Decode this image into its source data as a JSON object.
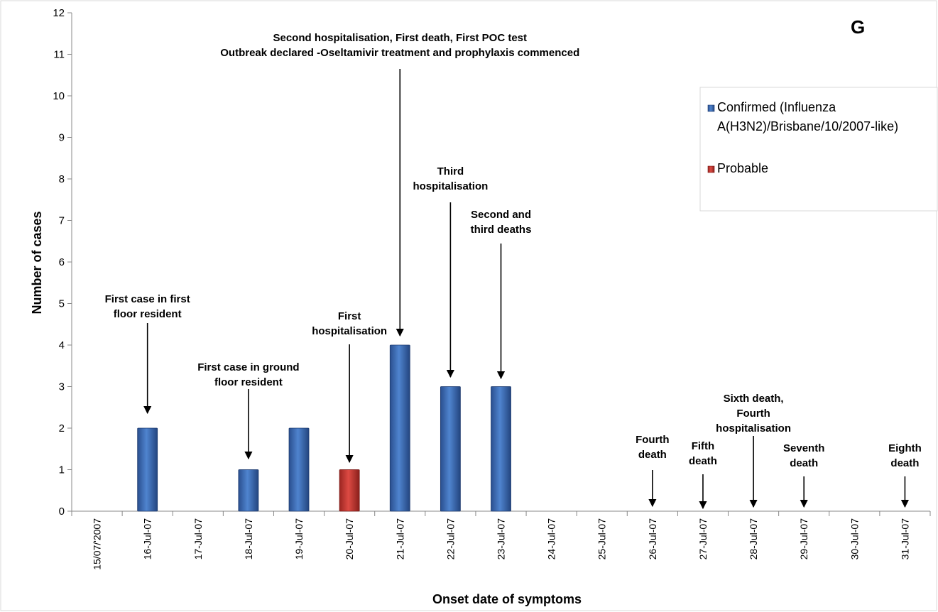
{
  "chart_data": {
    "type": "bar",
    "panel_label": "G",
    "xlabel": "Onset date of symptoms",
    "ylabel": "Number of cases",
    "ylim": [
      0,
      12
    ],
    "yticks": [
      "0",
      "1",
      "2",
      "3",
      "4",
      "5",
      "6",
      "7",
      "8",
      "9",
      "10",
      "11",
      "12"
    ],
    "grid": false,
    "legend_position": "top-right",
    "categories": [
      "15/07/'2007",
      "16-Jul-07",
      "17-Jul-07",
      "18-Jul-07",
      "19-Jul-07",
      "20-Jul-07",
      "21-Jul-07",
      "22-Jul-07",
      "23-Jul-07",
      "24-Jul-07",
      "25-Jul-07",
      "26-Jul-07",
      "27-Jul-07",
      "28-Jul-07",
      "29-Jul-07",
      "30-Jul-07",
      "31-Jul-07"
    ],
    "series": [
      {
        "name": "Confirmed (Influenza A(H3N2)/Brisbane/10/2007-like)",
        "legend_lines": [
          "Confirmed (Influenza",
          "A(H3N2)/Brisbane/10/2007-like)"
        ],
        "color": "#3a68b0",
        "values": [
          0,
          2,
          0,
          1,
          2,
          0,
          4,
          3,
          3,
          0,
          0,
          0,
          0,
          0,
          0,
          0,
          0
        ]
      },
      {
        "name": "Probable",
        "legend_lines": [
          "Probable"
        ],
        "color": "#c0302b",
        "values": [
          0,
          0,
          0,
          0,
          0,
          1,
          0,
          0,
          0,
          0,
          0,
          0,
          0,
          0,
          0,
          0,
          0
        ]
      }
    ],
    "annotations": [
      {
        "category": "16-Jul-07",
        "lines": [
          "First case in first",
          "floor resident"
        ]
      },
      {
        "category": "18-Jul-07",
        "lines": [
          "First case in ground",
          "floor resident"
        ]
      },
      {
        "category": "20-Jul-07",
        "lines": [
          "First",
          "hospitalisation"
        ]
      },
      {
        "category": "21-Jul-07",
        "lines": [
          "Second hospitalisation,  First death,  First POC test",
          "Outbreak declared  -Oseltamivir treatment and prophylaxis commenced"
        ]
      },
      {
        "category": "22-Jul-07",
        "lines": [
          "Third",
          "hospitalisation"
        ]
      },
      {
        "category": "23-Jul-07",
        "lines": [
          "Second and",
          "third deaths"
        ]
      },
      {
        "category": "26-Jul-07",
        "lines": [
          "Fourth",
          "death"
        ]
      },
      {
        "category": "27-Jul-07",
        "lines": [
          "Fifth",
          "death"
        ]
      },
      {
        "category": "28-Jul-07",
        "lines": [
          "Sixth death,",
          "Fourth",
          "hospitalisation"
        ]
      },
      {
        "category": "29-Jul-07",
        "lines": [
          "Seventh",
          "death"
        ]
      },
      {
        "category": "31-Jul-07",
        "lines": [
          "Eighth",
          "death"
        ]
      }
    ]
  }
}
